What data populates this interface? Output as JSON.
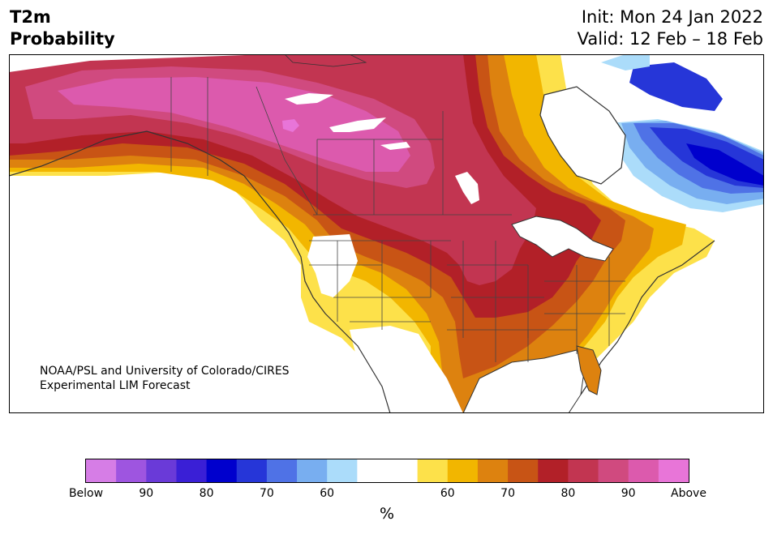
{
  "header": {
    "variable": "T2m",
    "product": "Probability",
    "init": "Init: Mon 24 Jan 2022",
    "valid": "Valid: 12 Feb – 18 Feb"
  },
  "credit": {
    "line1": "NOAA/PSL and University of Colorado/CIRES",
    "line2": "Experimental LIM Forecast"
  },
  "colorbar": {
    "unit": "%",
    "colors": [
      "#d67de6",
      "#9e55e0",
      "#6a3ad8",
      "#3a1fd6",
      "#0000cd",
      "#2636d8",
      "#4f72e6",
      "#78aef0",
      "#abdcfa",
      "#ffffff",
      "#ffffff",
      "#fde14a",
      "#f2b600",
      "#dd820f",
      "#c85415",
      "#b22028",
      "#c23551",
      "#d04a7f",
      "#dc5aad",
      "#e875d8"
    ],
    "labels": [
      "Below",
      "90",
      "80",
      "70",
      "60",
      "60",
      "70",
      "80",
      "90",
      "Above"
    ]
  },
  "map": {
    "categories": {
      "above_strong": "#dc5aad",
      "above_90": "#d04a7f",
      "above_80": "#c23551",
      "above_75": "#b22028",
      "above_70": "#c85415",
      "above_65": "#dd820f",
      "above_60": "#f2b600",
      "above_55": "#fde14a",
      "neutral": "#ffffff",
      "below_55": "#abdcfa",
      "below_60": "#78aef0",
      "below_70": "#4f72e6",
      "below_80": "#2636d8",
      "below_90": "#0000cd"
    }
  }
}
